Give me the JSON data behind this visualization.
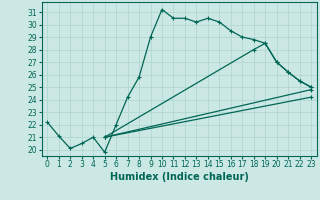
{
  "xlabel": "Humidex (Indice chaleur)",
  "bg_color": "#cce8e4",
  "line_color": "#006655",
  "grid_color": "#b0d8d0",
  "xlim": [
    -0.5,
    23.5
  ],
  "ylim": [
    19.5,
    31.8
  ],
  "xticks": [
    0,
    1,
    2,
    3,
    4,
    5,
    6,
    7,
    8,
    9,
    10,
    11,
    12,
    13,
    14,
    15,
    16,
    17,
    18,
    19,
    20,
    21,
    22,
    23
  ],
  "yticks": [
    20,
    21,
    22,
    23,
    24,
    25,
    26,
    27,
    28,
    29,
    30,
    31
  ],
  "curve1_x": [
    0,
    1,
    2,
    3,
    4,
    5,
    6,
    7,
    8,
    9,
    10,
    11,
    12,
    13,
    14,
    15,
    16,
    17,
    18,
    19,
    20,
    21,
    22,
    23
  ],
  "curve1_y": [
    22.2,
    21.1,
    20.1,
    20.5,
    21.0,
    19.8,
    22.0,
    24.2,
    25.8,
    29.0,
    31.2,
    30.5,
    30.5,
    30.2,
    30.5,
    30.2,
    29.5,
    29.0,
    28.8,
    28.5,
    27.0,
    26.2,
    25.5,
    25.0
  ],
  "curve2_x": [
    5,
    18,
    19,
    20,
    21,
    22,
    23
  ],
  "curve2_y": [
    21.0,
    28.0,
    28.5,
    27.0,
    26.2,
    25.5,
    25.0
  ],
  "curve3_x": [
    5,
    23
  ],
  "curve3_y": [
    21.0,
    24.8
  ],
  "curve4_x": [
    5,
    23
  ],
  "curve4_y": [
    21.0,
    24.2
  ],
  "marker_size": 2.5,
  "font_size_tick": 5.5,
  "font_size_label": 7.0
}
